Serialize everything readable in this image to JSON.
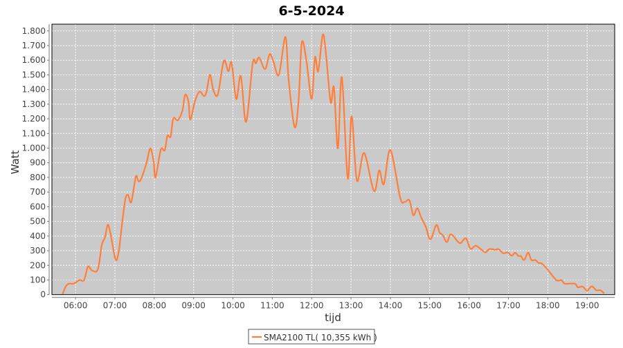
{
  "chart_data": {
    "type": "line",
    "title": "6-5-2024",
    "xlabel": "tijd",
    "ylabel": "Watt",
    "xlim": [
      "05:24",
      "19:42"
    ],
    "ylim": [
      0,
      1846
    ],
    "grid": true,
    "legend_placement": "bottom",
    "x_ticks": [
      "06:00",
      "07:00",
      "08:00",
      "09:00",
      "10:00",
      "11:00",
      "12:00",
      "13:00",
      "14:00",
      "15:00",
      "16:00",
      "17:00",
      "18:00",
      "19:00"
    ],
    "y_ticks": [
      0,
      100,
      200,
      300,
      400,
      500,
      600,
      700,
      800,
      900,
      1000,
      1100,
      1200,
      1300,
      1400,
      1500,
      1600,
      1700,
      1800
    ],
    "y_tick_labels": [
      "0",
      "100",
      "200",
      "300",
      "400",
      "500",
      "600",
      "700",
      "800",
      "900",
      "1.000",
      "1.100",
      "1.200",
      "1.300",
      "1.400",
      "1.500",
      "1.600",
      "1.700",
      "1.800"
    ],
    "colors": {
      "plot_background": "#cacaca",
      "grid": "#ffffff",
      "series": "#ff7f3a"
    },
    "series": [
      {
        "name": "SMA2100 TL( 10,355 kWh )",
        "x": [
          "05:40",
          "05:45",
          "05:50",
          "05:57",
          "06:06",
          "06:13",
          "06:19",
          "06:25",
          "06:34",
          "06:40",
          "06:45",
          "06:49",
          "06:53",
          "07:01",
          "07:06",
          "07:11",
          "07:16",
          "07:20",
          "07:25",
          "07:32",
          "07:36",
          "07:40",
          "07:48",
          "07:54",
          "07:59",
          "08:02",
          "08:10",
          "08:16",
          "08:20",
          "08:25",
          "08:29",
          "08:36",
          "08:43",
          "08:47",
          "08:52",
          "08:55",
          "09:02",
          "09:09",
          "09:16",
          "09:20",
          "09:25",
          "09:30",
          "09:37",
          "09:46",
          "09:53",
          "09:58",
          "10:05",
          "10:12",
          "10:20",
          "10:30",
          "10:35",
          "10:40",
          "10:49",
          "10:56",
          "11:02",
          "11:10",
          "11:20",
          "11:25",
          "11:34",
          "11:40",
          "11:45",
          "11:52",
          "12:00",
          "12:05",
          "12:10",
          "12:17",
          "12:22",
          "12:29",
          "12:34",
          "12:40",
          "12:46",
          "12:55",
          "13:01",
          "13:09",
          "13:20",
          "13:35",
          "13:43",
          "13:50",
          "14:00",
          "14:15",
          "14:22",
          "14:29",
          "14:35",
          "14:41",
          "14:47",
          "14:54",
          "15:01",
          "15:10",
          "15:15",
          "15:20",
          "15:26",
          "15:31",
          "15:36",
          "15:46",
          "15:55",
          "16:02",
          "16:10",
          "16:18",
          "16:25",
          "16:31",
          "16:40",
          "16:45",
          "16:52",
          "16:59",
          "17:05",
          "17:10",
          "17:15",
          "17:19",
          "17:24",
          "17:30",
          "17:35",
          "17:41",
          "17:46",
          "17:51",
          "18:00",
          "18:13",
          "18:21",
          "18:26",
          "18:41",
          "18:46",
          "18:53",
          "19:00",
          "19:07",
          "19:14",
          "19:20",
          "19:26"
        ],
        "values": [
          0,
          55,
          75,
          75,
          99,
          99,
          192,
          165,
          172,
          338,
          393,
          476,
          424,
          240,
          299,
          487,
          652,
          680,
          632,
          806,
          774,
          790,
          895,
          998,
          910,
          801,
          990,
          985,
          1084,
          1079,
          1202,
          1191,
          1257,
          1364,
          1320,
          1194,
          1320,
          1385,
          1355,
          1390,
          1500,
          1398,
          1367,
          1595,
          1524,
          1583,
          1335,
          1492,
          1178,
          1579,
          1579,
          1618,
          1539,
          1641,
          1587,
          1500,
          1759,
          1461,
          1144,
          1319,
          1720,
          1595,
          1335,
          1621,
          1524,
          1775,
          1634,
          1312,
          1414,
          998,
          1484,
          793,
          1218,
          778,
          966,
          707,
          848,
          754,
          987,
          660,
          633,
          644,
          542,
          589,
          526,
          464,
          377,
          475,
          424,
          405,
          358,
          409,
          400,
          351,
          385,
          314,
          334,
          310,
          288,
          311,
          306,
          310,
          283,
          288,
          265,
          286,
          265,
          263,
          236,
          286,
          236,
          236,
          216,
          212,
          170,
          99,
          99,
          75,
          75,
          50,
          55,
          27,
          57,
          30,
          30,
          8
        ]
      }
    ]
  }
}
